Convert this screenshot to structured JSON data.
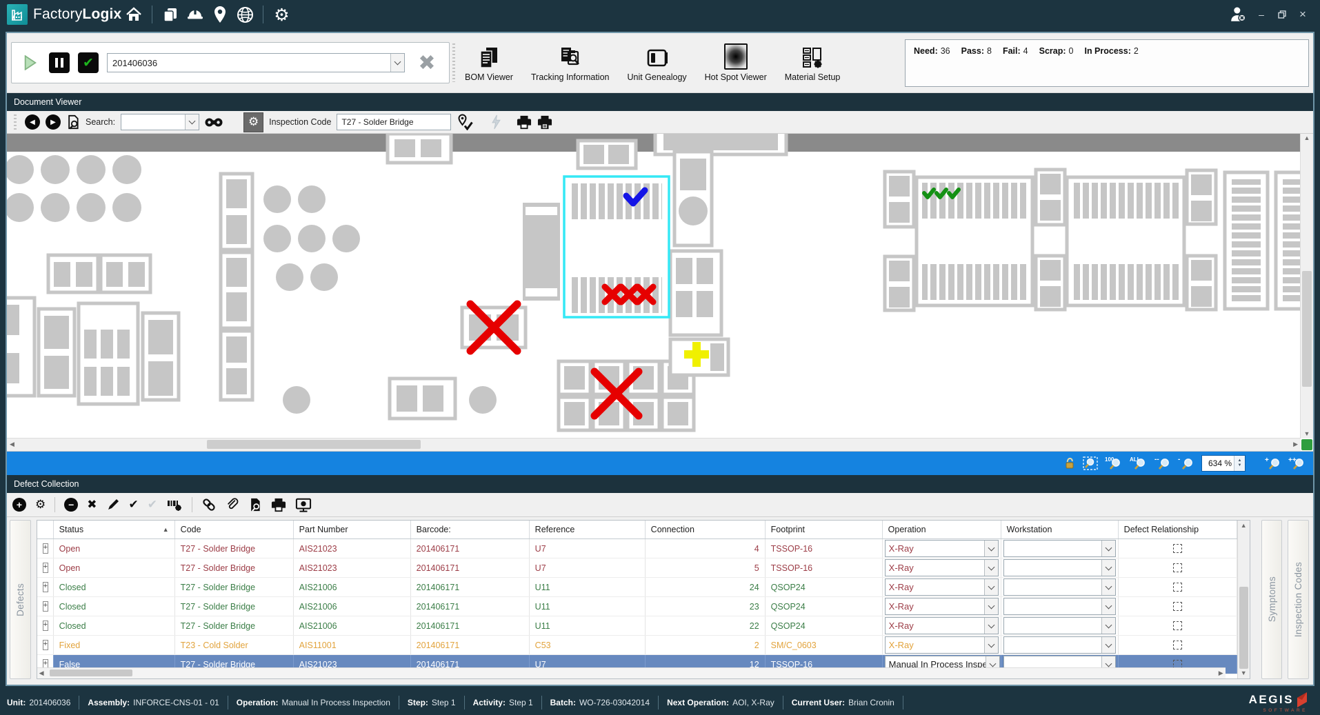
{
  "brand": {
    "light": "Factory",
    "bold": "Logix"
  },
  "glyphs": {
    "gear": "⚙",
    "check": "✔",
    "cross": "✖",
    "pencil": "✎",
    "sort_asc": "▲",
    "up": "▲",
    "down": "▼",
    "left": "◀",
    "right": "▶",
    "plus": "+",
    "minus": "−",
    "minimize": "–",
    "close": "×",
    "expand": "+"
  },
  "toolbar": {
    "unit_value": "201406036",
    "actions": [
      {
        "label": "BOM Viewer"
      },
      {
        "label": "Tracking Information"
      },
      {
        "label": "Unit Genealogy"
      },
      {
        "label": "Hot Spot Viewer"
      },
      {
        "label": "Material Setup"
      }
    ],
    "stats": [
      {
        "label": "Need:",
        "value": "36"
      },
      {
        "label": "Pass:",
        "value": "8"
      },
      {
        "label": "Fail:",
        "value": "4"
      },
      {
        "label": "Scrap:",
        "value": "0"
      },
      {
        "label": "In Process:",
        "value": "2"
      }
    ]
  },
  "document_viewer": {
    "title": "Document Viewer",
    "search_label": "Search:",
    "search_value": "",
    "inspection_code_label": "Inspection Code",
    "inspection_code_value": "T27 - Solder Bridge",
    "zoom_value": "634 %",
    "zoom_buttons": [
      "100",
      "ALL",
      "--",
      "-",
      "+",
      "++"
    ]
  },
  "defect_collection": {
    "title": "Defect Collection",
    "left_tab": "Defects",
    "right_tabs": [
      "Symptoms",
      "Inspection Codes"
    ],
    "columns": [
      "",
      "Status",
      "Code",
      "Part Number",
      "Barcode:",
      "Reference",
      "Connection",
      "Footprint",
      "Operation",
      "Workstation",
      "Defect Relationship"
    ],
    "rows": [
      {
        "status": "Open",
        "code": "T27 - Solder Bridge",
        "part_number": "AIS21023",
        "barcode": "201406171",
        "reference": "U7",
        "connection": "4",
        "footprint": "TSSOP-16",
        "operation": "X-Ray",
        "workstation": "",
        "state": "open",
        "op_class": "op-red",
        "selected": false
      },
      {
        "status": "Open",
        "code": "T27 - Solder Bridge",
        "part_number": "AIS21023",
        "barcode": "201406171",
        "reference": "U7",
        "connection": "5",
        "footprint": "TSSOP-16",
        "operation": "X-Ray",
        "workstation": "",
        "state": "open",
        "op_class": "op-red",
        "selected": false
      },
      {
        "status": "Closed",
        "code": "T27 - Solder Bridge",
        "part_number": "AIS21006",
        "barcode": "201406171",
        "reference": "U11",
        "connection": "24",
        "footprint": "QSOP24",
        "operation": "X-Ray",
        "workstation": "",
        "state": "closed",
        "op_class": "op-red",
        "selected": false
      },
      {
        "status": "Closed",
        "code": "T27 - Solder Bridge",
        "part_number": "AIS21006",
        "barcode": "201406171",
        "reference": "U11",
        "connection": "23",
        "footprint": "QSOP24",
        "operation": "X-Ray",
        "workstation": "",
        "state": "closed",
        "op_class": "op-red",
        "selected": false
      },
      {
        "status": "Closed",
        "code": "T27 - Solder Bridge",
        "part_number": "AIS21006",
        "barcode": "201406171",
        "reference": "U11",
        "connection": "22",
        "footprint": "QSOP24",
        "operation": "X-Ray",
        "workstation": "",
        "state": "closed",
        "op_class": "op-red",
        "selected": false
      },
      {
        "status": "Fixed",
        "code": "T23 - Cold Solder",
        "part_number": "AIS11001",
        "barcode": "201406171",
        "reference": "C53",
        "connection": "2",
        "footprint": "SM/C_0603",
        "operation": "X-Ray",
        "workstation": "",
        "state": "fixed",
        "op_class": "op-orange",
        "selected": false
      },
      {
        "status": "False",
        "code": "T27 - Solder Bridge",
        "part_number": "AIS21023",
        "barcode": "201406171",
        "reference": "U7",
        "connection": "12",
        "footprint": "TSSOP-16",
        "operation": "Manual In Process Inspec...",
        "workstation": "",
        "state": "false",
        "op_class": "op-dark",
        "selected": true
      }
    ]
  },
  "statusbar": {
    "items": [
      {
        "label": "Unit:",
        "value": "201406036"
      },
      {
        "label": "Assembly:",
        "value": "INFORCE-CNS-01 - 01"
      },
      {
        "label": "Operation:",
        "value": "Manual In Process Inspection"
      },
      {
        "label": "Step:",
        "value": "Step 1"
      },
      {
        "label": "Activity:",
        "value": "Step 1"
      },
      {
        "label": "Batch:",
        "value": "WO-726-03042014"
      },
      {
        "label": "Next Operation:",
        "value": "AOI, X-Ray"
      },
      {
        "label": "Current User:",
        "value": "Brian Cronin"
      }
    ],
    "logo": {
      "name": "AEGIS",
      "sub": "SOFTWARE"
    }
  },
  "colors": {
    "header_dark": "#1c323d",
    "accent_blue": "#1583e0",
    "selection_blue": "#6789bf",
    "status_open": "#9c3c46",
    "status_closed": "#3a7d46",
    "status_fixed": "#e2a33c",
    "highlight_cyan": "#35e8f5",
    "mark_red": "#e60000",
    "mark_green": "#149114",
    "mark_blue": "#1414e6",
    "mark_yellow": "#f0f000",
    "component_gray": "#c6c6c6"
  }
}
